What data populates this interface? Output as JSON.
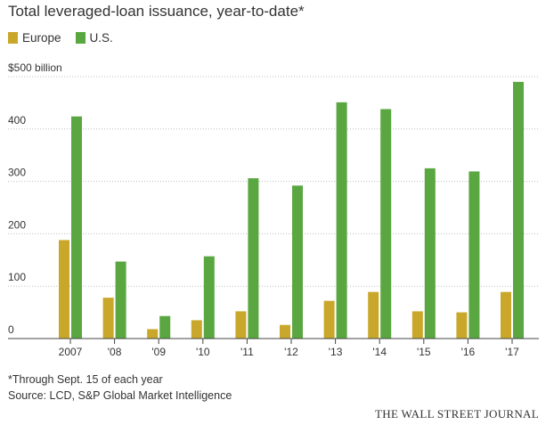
{
  "chart_data": {
    "type": "bar",
    "title": "Total leveraged-loan issuance, year-to-date*",
    "xlabel": "",
    "ylabel": "",
    "unit_label": "$500 billion",
    "categories": [
      "2007",
      "'08",
      "'09",
      "'10",
      "'11",
      "'12",
      "'13",
      "'14",
      "'15",
      "'16",
      "'17"
    ],
    "series": [
      {
        "name": "Europe",
        "color": "#c9a72a",
        "values": [
          188,
          78,
          18,
          35,
          52,
          26,
          72,
          89,
          52,
          50,
          89
        ]
      },
      {
        "name": "U.S.",
        "color": "#5aa741",
        "values": [
          424,
          147,
          43,
          157,
          306,
          292,
          451,
          438,
          325,
          319,
          490
        ]
      }
    ],
    "ylim": [
      0,
      500
    ],
    "yticks": [
      0,
      100,
      200,
      300,
      400
    ],
    "ytick_labels": [
      "0",
      "100",
      "200",
      "300",
      "400"
    ],
    "grid": true,
    "legend_position": "top-left"
  },
  "footnote": "*Through Sept. 15 of each year",
  "source": "Source: LCD, S&P Global Market Intelligence",
  "brand": "THE WALL STREET JOURNAL"
}
